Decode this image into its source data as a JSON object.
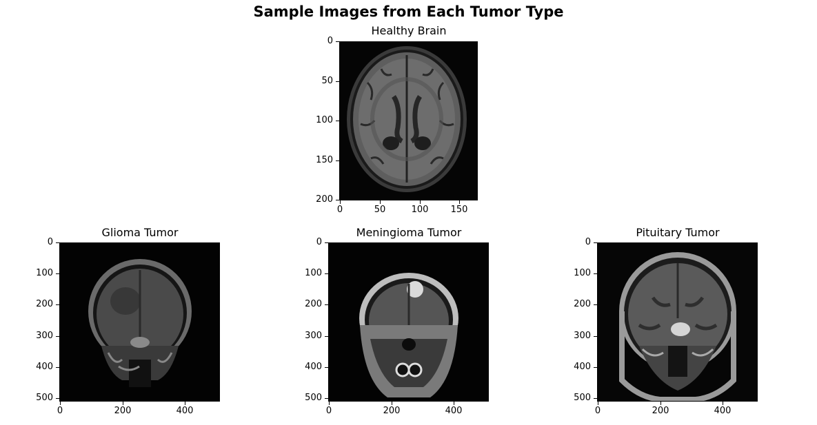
{
  "figure": {
    "title": "Sample Images from Each Tumor Type"
  },
  "panels": [
    {
      "id": "healthy",
      "title": "Healthy Brain",
      "yticks": [
        "0",
        "50",
        "100",
        "150",
        "200"
      ],
      "xticks": [
        "0",
        "50",
        "100",
        "150"
      ]
    },
    {
      "id": "glioma",
      "title": "Glioma Tumor",
      "yticks": [
        "0",
        "100",
        "200",
        "300",
        "400",
        "500"
      ],
      "xticks": [
        "0",
        "200",
        "400"
      ]
    },
    {
      "id": "meningioma",
      "title": "Meningioma Tumor",
      "yticks": [
        "0",
        "100",
        "200",
        "300",
        "400",
        "500"
      ],
      "xticks": [
        "0",
        "200",
        "400"
      ]
    },
    {
      "id": "pituitary",
      "title": "Pituitary Tumor",
      "yticks": [
        "0",
        "100",
        "200",
        "300",
        "400",
        "500"
      ],
      "xticks": [
        "0",
        "200",
        "400"
      ]
    }
  ]
}
